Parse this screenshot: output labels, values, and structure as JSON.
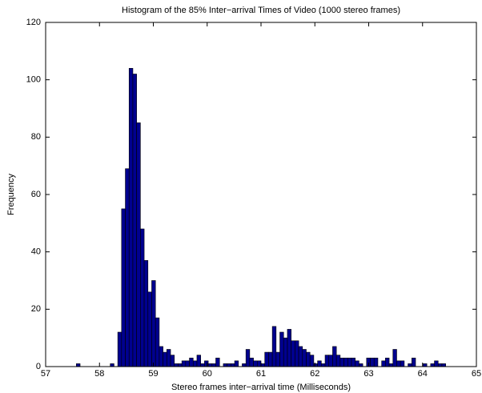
{
  "chart_data": {
    "type": "histogram",
    "title": "Histogram of the 85% Inter−arrival Times of Video (1000 stereo frames)",
    "xlabel": "Stereo frames inter−arrival time (Milliseconds)",
    "ylabel": "Frequency",
    "color": "#00008f",
    "bins": [
      57.5,
      57.57,
      57.64,
      57.71,
      57.78,
      57.85,
      57.92,
      57.99,
      58.06,
      58.13,
      58.2,
      58.27,
      58.34,
      58.41,
      58.48,
      58.55,
      58.62,
      58.69,
      58.76,
      58.83,
      58.9,
      58.97,
      59.04,
      59.11,
      59.18,
      59.25,
      59.32,
      59.39,
      59.46,
      59.53,
      59.6,
      59.67,
      59.74,
      59.81,
      59.88,
      59.95,
      60.02,
      60.09,
      60.16,
      60.23,
      60.3,
      60.37,
      60.44,
      60.51,
      60.58,
      60.65,
      60.72,
      60.79,
      60.86,
      60.93,
      61,
      61.07,
      61.14,
      61.21,
      61.28,
      61.35,
      61.42,
      61.49,
      61.56,
      61.63,
      61.7,
      61.77,
      61.84,
      61.91,
      61.98,
      62.05,
      62.12,
      62.19,
      62.26,
      62.33,
      62.4,
      62.47,
      62.54,
      62.61,
      62.68,
      62.75,
      62.82,
      62.89,
      62.96,
      63.03,
      63.1,
      63.17,
      63.24,
      63.31,
      63.38,
      63.45,
      63.52,
      63.59,
      63.66,
      63.73,
      63.8,
      63.87,
      63.94,
      64.01,
      64.08,
      64.15,
      64.22,
      64.29,
      64.36,
      64.43,
      64.5
    ],
    "values": [
      0,
      1,
      0,
      0,
      0,
      0,
      0,
      0,
      0,
      0,
      1,
      0,
      12,
      55,
      69,
      104,
      102,
      85,
      48,
      37,
      26,
      30,
      17,
      7,
      5,
      6,
      4,
      1,
      1,
      2,
      2,
      3,
      2,
      4,
      1,
      2,
      1,
      1,
      3,
      0,
      1,
      1,
      1,
      2,
      0,
      1,
      6,
      3,
      2,
      2,
      1,
      5,
      5,
      14,
      5,
      12,
      10,
      13,
      9,
      9,
      7,
      6,
      5,
      4,
      1,
      2,
      1,
      4,
      4,
      7,
      4,
      3,
      3,
      3,
      3,
      2,
      1,
      0,
      3,
      3,
      3,
      0,
      2,
      3,
      1,
      6,
      2,
      2,
      0,
      1,
      3,
      0,
      0,
      1,
      0,
      1,
      2,
      1,
      1,
      0
    ],
    "xlim": [
      57,
      65
    ],
    "xticks": [
      57,
      58,
      59,
      60,
      61,
      62,
      63,
      64,
      65
    ],
    "ylim": [
      0,
      120
    ],
    "yticks": [
      0,
      20,
      40,
      60,
      80,
      100,
      120
    ],
    "grid": false
  }
}
